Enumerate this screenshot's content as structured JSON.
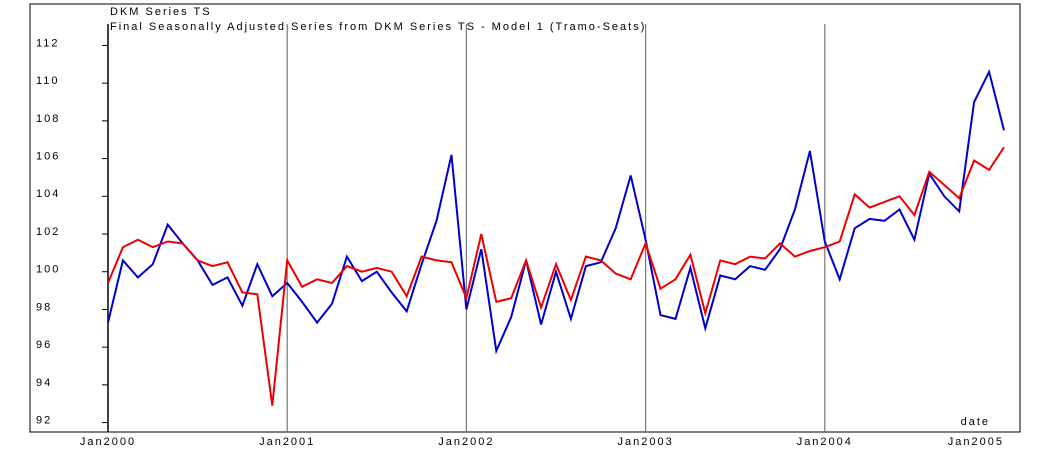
{
  "chart_data": {
    "type": "line",
    "x_label": "date",
    "categories": [
      "Jan2000",
      null,
      null,
      null,
      null,
      null,
      null,
      null,
      null,
      null,
      null,
      null,
      "Jan2001",
      null,
      null,
      null,
      null,
      null,
      null,
      null,
      null,
      null,
      null,
      null,
      "Jan2002",
      null,
      null,
      null,
      null,
      null,
      null,
      null,
      null,
      null,
      null,
      null,
      "Jan2003",
      null,
      null,
      null,
      null,
      null,
      null,
      null,
      null,
      null,
      null,
      null,
      "Jan2004",
      null,
      null,
      null,
      null,
      null,
      null,
      null,
      null,
      null,
      null,
      null,
      "Jan2005"
    ],
    "series": [
      {
        "name": "DKM Series TS",
        "color": "#0000cc",
        "values": [
          97.3,
          100.6,
          99.7,
          100.4,
          102.5,
          101.5,
          100.6,
          99.3,
          99.7,
          98.2,
          100.4,
          98.7,
          99.4,
          98.4,
          97.3,
          98.3,
          100.8,
          99.5,
          100.0,
          98.9,
          97.9,
          100.4,
          102.7,
          106.2,
          98.0,
          101.2,
          95.8,
          97.6,
          100.6,
          97.2,
          100.0,
          97.5,
          100.3,
          100.5,
          102.3,
          105.1,
          101.7,
          97.7,
          97.5,
          100.2,
          97.0,
          99.8,
          99.6,
          100.3,
          100.1,
          101.2,
          103.3,
          106.4,
          101.6,
          99.6,
          102.3,
          102.8,
          102.7,
          103.3,
          101.7,
          105.2,
          104.0,
          103.2,
          109.0,
          110.6,
          107.5
        ]
      },
      {
        "name": "Final Seasonally Adjusted Series from DKM Series TS - Model 1 (Tramo-Seats)",
        "color": "#ee0000",
        "values": [
          99.4,
          101.3,
          101.7,
          101.3,
          101.6,
          101.5,
          100.6,
          100.3,
          100.5,
          98.9,
          98.8,
          92.9,
          100.6,
          99.2,
          99.6,
          99.4,
          100.3,
          100.0,
          100.2,
          100.0,
          98.7,
          100.8,
          100.6,
          100.5,
          98.6,
          102.0,
          98.4,
          98.6,
          100.6,
          98.1,
          100.4,
          98.5,
          100.8,
          100.6,
          99.9,
          99.6,
          101.5,
          99.1,
          99.6,
          100.9,
          97.8,
          100.6,
          100.4,
          100.8,
          100.7,
          101.5,
          100.8,
          101.1,
          101.3,
          101.6,
          104.1,
          103.4,
          103.7,
          104.0,
          103.0,
          105.3,
          104.6,
          103.9,
          105.9,
          105.4,
          106.6
        ]
      }
    ],
    "ylim": [
      91.5,
      112.5
    ],
    "yticks": [
      92,
      94,
      96,
      98,
      100,
      102,
      104,
      106,
      108,
      110,
      112
    ]
  }
}
